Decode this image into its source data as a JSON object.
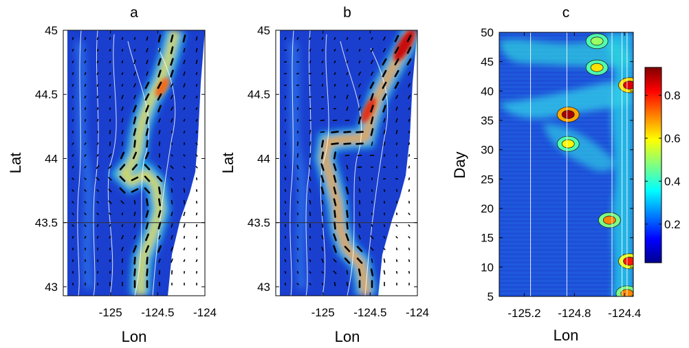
{
  "chart_data": [
    {
      "type": "heatmap",
      "title": "a",
      "xlabel": "Lon",
      "ylabel": "Lat",
      "xlim": [
        -125.5,
        -124.0
      ],
      "ylim": [
        42.93,
        45.0
      ],
      "xticks": [
        -125,
        -124.5,
        -124
      ],
      "xtick_labels": [
        "-125",
        "-124.5",
        "-124"
      ],
      "yticks": [
        43,
        43.5,
        44,
        44.5,
        45
      ],
      "ytick_labels": [
        "43",
        "43.5",
        "44",
        "44.5",
        "45"
      ],
      "reference_line_lat": 43.5,
      "jet_path": [
        [
          -124.31,
          45.0
        ],
        [
          -124.38,
          44.8
        ],
        [
          -124.47,
          44.6
        ],
        [
          -124.58,
          44.45
        ],
        [
          -124.66,
          44.3
        ],
        [
          -124.7,
          44.18
        ],
        [
          -124.72,
          44.05
        ],
        [
          -124.78,
          43.95
        ],
        [
          -124.86,
          43.88
        ],
        [
          -124.78,
          43.82
        ],
        [
          -124.62,
          43.88
        ],
        [
          -124.52,
          43.8
        ],
        [
          -124.48,
          43.6
        ],
        [
          -124.55,
          43.42
        ],
        [
          -124.66,
          43.22
        ],
        [
          -124.68,
          43.05
        ],
        [
          -124.68,
          42.93
        ]
      ],
      "max_value_region": [
        -124.55,
        44.45
      ]
    },
    {
      "type": "heatmap",
      "title": "b",
      "xlabel": "Lon",
      "ylabel": "Lat",
      "xlim": [
        -125.5,
        -124.0
      ],
      "ylim": [
        42.93,
        45.0
      ],
      "xticks": [
        -125,
        -124.5,
        -124
      ],
      "xtick_labels": [
        "-125",
        "-124.5",
        "-124"
      ],
      "yticks": [
        43,
        43.5,
        44,
        44.5,
        45
      ],
      "ytick_labels": [
        "43",
        "43.5",
        "44",
        "44.5",
        "45"
      ],
      "reference_line_lat": 43.5,
      "jet_path": [
        [
          -124.05,
          45.0
        ],
        [
          -124.15,
          44.85
        ],
        [
          -124.3,
          44.65
        ],
        [
          -124.42,
          44.48
        ],
        [
          -124.5,
          44.3
        ],
        [
          -124.55,
          44.16
        ],
        [
          -124.75,
          44.15
        ],
        [
          -124.95,
          44.13
        ],
        [
          -124.98,
          44.0
        ],
        [
          -124.92,
          43.85
        ],
        [
          -124.85,
          43.65
        ],
        [
          -124.82,
          43.45
        ],
        [
          -124.75,
          43.3
        ],
        [
          -124.6,
          43.18
        ],
        [
          -124.55,
          43.0
        ],
        [
          -124.55,
          42.93
        ]
      ],
      "max_value_region": [
        -124.1,
        44.9
      ]
    },
    {
      "type": "heatmap",
      "title": "c",
      "xlabel": "Lon",
      "ylabel": "Day",
      "xlim": [
        -125.4,
        -124.33
      ],
      "ylim": [
        5,
        50
      ],
      "xticks": [
        -125.2,
        -124.8,
        -124.4
      ],
      "xtick_labels": [
        "-125.2",
        "-124.8",
        "-124.4"
      ],
      "yticks": [
        5,
        10,
        15,
        20,
        25,
        30,
        35,
        40,
        45,
        50
      ],
      "ytick_labels": [
        "5",
        "10",
        "15",
        "20",
        "25",
        "30",
        "35",
        "40",
        "45",
        "50"
      ],
      "colorbar": {
        "range": [
          0.02,
          0.93
        ],
        "ticks": [
          0.2,
          0.4,
          0.6,
          0.8
        ],
        "tick_labels": [
          "0.2",
          "0.4",
          "0.6",
          "0.8"
        ],
        "colormap": "jet"
      },
      "vertical_lines_lon": [
        -125.15,
        -124.86,
        -124.5,
        -124.42,
        -124.38
      ],
      "hotspots": [
        {
          "lon": -124.85,
          "day": 36,
          "value": 0.9
        },
        {
          "lon": -124.36,
          "day": 41,
          "value": 0.85
        },
        {
          "lon": -124.36,
          "day": 11,
          "value": 0.8
        },
        {
          "lon": -124.52,
          "day": 18,
          "value": 0.7
        },
        {
          "lon": -124.85,
          "day": 31,
          "value": 0.6
        },
        {
          "lon": -124.62,
          "day": 44,
          "value": 0.62
        },
        {
          "lon": -124.38,
          "day": 5.5,
          "value": 0.7
        },
        {
          "lon": -124.62,
          "day": 48.5,
          "value": 0.5
        }
      ]
    }
  ]
}
